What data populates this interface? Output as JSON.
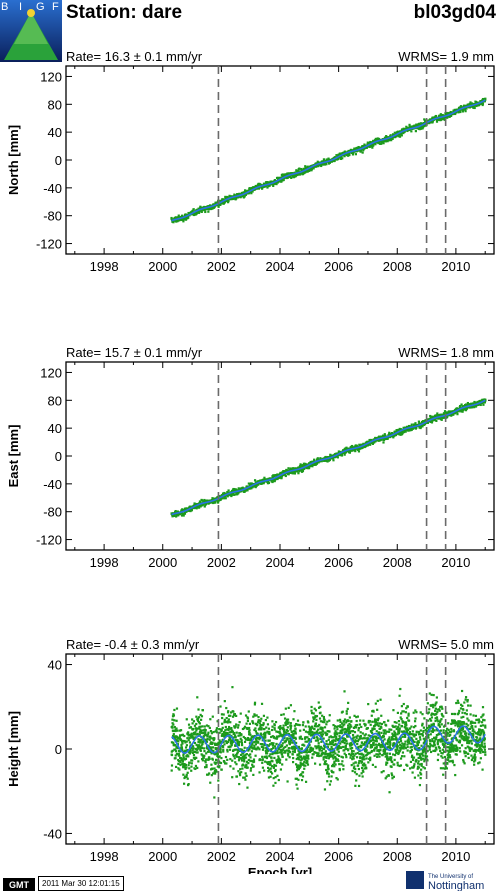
{
  "header": {
    "logo_text": "BIGF",
    "station_title": "Station: dare",
    "site_code": "bl03gd04"
  },
  "footer": {
    "gmt_label": "GMT",
    "timestamp": "2011 Mar 30 12:01:15",
    "university_line1": "The University of",
    "university_line2": "Nottingham"
  },
  "colors": {
    "points": "#1c9a1c",
    "fit": "#2a73e6",
    "dashed": "#6a6a6a"
  },
  "chart_data": [
    {
      "type": "scatter",
      "rate_text": "Rate= 16.3 ±  0.1 mm/yr",
      "wrms_text": "WRMS=  1.9 mm",
      "ylabel": "North [mm]",
      "xlabel": "",
      "xlim": [
        1996.7,
        2011.3
      ],
      "ylim": [
        -135,
        135
      ],
      "xticks": [
        1998,
        2000,
        2002,
        2004,
        2006,
        2008,
        2010
      ],
      "yticks": [
        -120,
        -80,
        -40,
        0,
        40,
        80,
        120
      ],
      "breaks": [
        2001.9,
        2009.0,
        2009.65
      ],
      "series": [
        {
          "start": 2000.3,
          "end": 2011.0,
          "y_start": -88,
          "y_end": 86,
          "scatter": 3
        }
      ]
    },
    {
      "type": "scatter",
      "rate_text": "Rate= 15.7 ±  0.1 mm/yr",
      "wrms_text": "WRMS=  1.8 mm",
      "ylabel": "East [mm]",
      "xlabel": "",
      "xlim": [
        1996.7,
        2011.3
      ],
      "ylim": [
        -135,
        135
      ],
      "xticks": [
        1998,
        2000,
        2002,
        2004,
        2006,
        2008,
        2010
      ],
      "yticks": [
        -120,
        -80,
        -40,
        0,
        40,
        80,
        120
      ],
      "breaks": [
        2001.9,
        2009.0,
        2009.65
      ],
      "series": [
        {
          "start": 2000.3,
          "end": 2011.0,
          "y_start": -85,
          "y_end": 80,
          "scatter": 3
        }
      ]
    },
    {
      "type": "scatter",
      "rate_text": "Rate= -0.4 ±  0.3 mm/yr",
      "wrms_text": "WRMS=  5.0 mm",
      "ylabel": "Height [mm]",
      "xlabel": "Epoch [yr]",
      "xlim": [
        1996.7,
        2011.3
      ],
      "ylim": [
        -45,
        45
      ],
      "xticks": [
        1998,
        2000,
        2002,
        2004,
        2006,
        2008,
        2010
      ],
      "yticks": [
        -40,
        0,
        40
      ],
      "breaks": [
        2001.9,
        2009.0,
        2009.65
      ],
      "series": [
        {
          "start": 2000.3,
          "end": 2011.0,
          "y_start": 2,
          "y_end": 4,
          "scatter": 10
        }
      ]
    }
  ]
}
